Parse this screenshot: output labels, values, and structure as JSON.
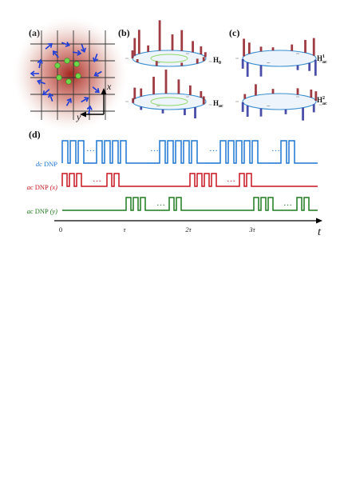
{
  "panels": {
    "a": {
      "label": "(a)",
      "axis_x": "x",
      "axis_y": "y"
    },
    "b": {
      "label": "(b)",
      "ham_top": "H",
      "ham_top_sub": "0",
      "ham_bottom": "H",
      "ham_bottom_sub": "ac"
    },
    "c": {
      "label": "(c)",
      "ham_top": "H",
      "ham_top_sub": "ac",
      "ham_top_sup": "1",
      "ham_bottom": "H",
      "ham_bottom_sub": "ac",
      "ham_bottom_sup": "2"
    },
    "d": {
      "label": "(d)"
    }
  },
  "sequences": [
    {
      "prefix": "dc",
      "name": " DNP",
      "suffix": "",
      "color": "#1f77d4"
    },
    {
      "prefix": "ac",
      "name": " DNP ",
      "suffix": "(x)",
      "color": "#c8141e"
    },
    {
      "prefix": "ac",
      "name": " DNP ",
      "suffix": "(y)",
      "color": "#1e7a1e"
    }
  ],
  "time_ticks": [
    "0",
    "τ",
    "2τ",
    "3τ"
  ],
  "time_axis_label": "t",
  "ellipsis": "…",
  "colors": {
    "glow": "#b22a1f",
    "lattice": "#333333",
    "arrow": "#1a3bd9",
    "dot": "#6fd84a",
    "ring": "#3a8fd1",
    "inner_ring": "#8fd86a"
  }
}
